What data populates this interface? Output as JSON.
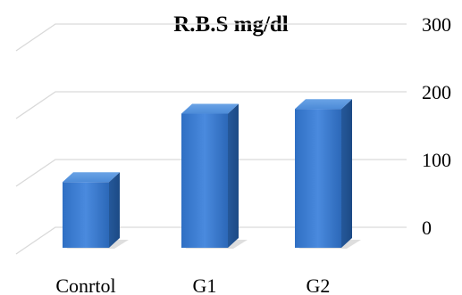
{
  "chart_data": {
    "type": "bar",
    "title": "R.B.S mg/dl",
    "categories": [
      "Conrtol",
      "G1",
      "G2"
    ],
    "values": [
      97,
      198,
      205
    ],
    "ylim": [
      0,
      300
    ],
    "yticks": [
      0,
      100,
      200,
      300
    ],
    "ytick_labels": [
      "0",
      "100",
      "200",
      "300"
    ],
    "grid": true,
    "legend": "none",
    "style": "3d-column",
    "colors": {
      "bar_front": "#3a7cd0",
      "bar_top": "#5592db",
      "bar_side": "#275d9f",
      "grid": "#d9d9d9"
    }
  }
}
